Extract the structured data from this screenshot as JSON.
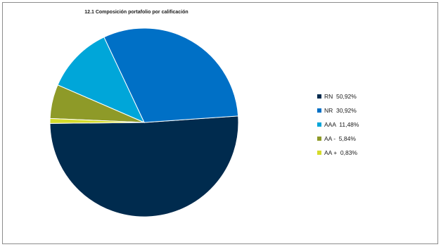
{
  "chart_data": {
    "type": "pie",
    "title": "12.1 Composición portafolio por calificación",
    "slices": [
      {
        "name": "RN",
        "value": 50.92,
        "label": "50,92%",
        "color": "#002B4E"
      },
      {
        "name": "NR",
        "value": 30.92,
        "label": "30,92%",
        "color": "#0070C6"
      },
      {
        "name": "AAA",
        "value": 11.48,
        "label": "11,48%",
        "color": "#00A6D9"
      },
      {
        "name": "AA -",
        "value": 5.84,
        "label": "5,84%",
        "color": "#8E9A28"
      },
      {
        "name": "AA +",
        "value": 0.83,
        "label": "0,83%",
        "color": "#D5DB2B"
      }
    ],
    "legend_position": "right"
  }
}
